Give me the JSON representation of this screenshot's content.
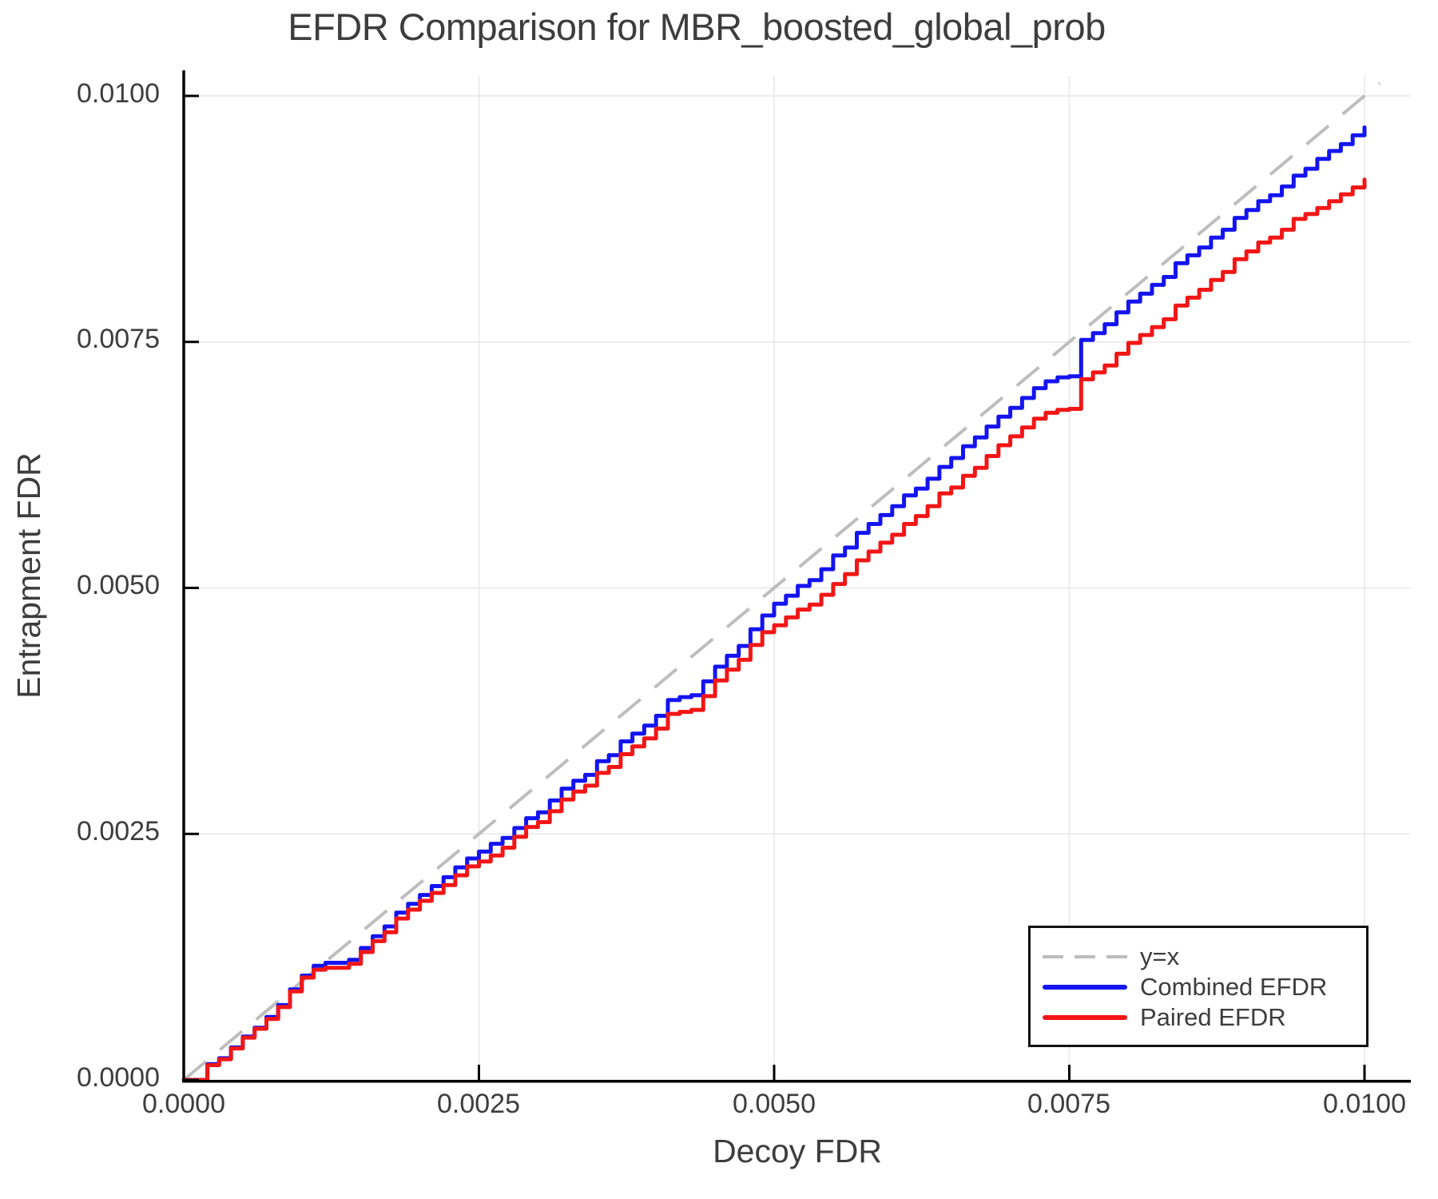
{
  "title": "EFDR Comparison for MBR_boosted_global_prob",
  "colors": {
    "combined_blue": "#1414f0",
    "paired_red": "#f21616",
    "diagonal_gray": "#bdbdbd",
    "grid_gray": "#e8e8e8",
    "spine_black": "#000000",
    "text_gray": "#3d3d3d"
  },
  "legend": {
    "entries": [
      {
        "label": "y=x",
        "style": "dashed",
        "color_key": "diagonal_gray"
      },
      {
        "label": "Combined EFDR",
        "style": "solid",
        "color_key": "combined_blue"
      },
      {
        "label": "Paired EFDR",
        "style": "solid",
        "color_key": "paired_red"
      }
    ],
    "position": "lower right"
  },
  "chart_data": {
    "type": "line",
    "title": "EFDR Comparison for MBR_boosted_global_prob",
    "xlabel": "Decoy FDR",
    "ylabel": "Entrapment FDR",
    "xlim": [
      0,
      0.0104
    ],
    "ylim": [
      0,
      0.0104
    ],
    "grid": true,
    "xticks": [
      0,
      0.0025,
      0.005,
      0.0075,
      0.01
    ],
    "yticks": [
      0,
      0.0025,
      0.005,
      0.0075,
      0.01
    ],
    "x_tick_labels": [
      "0.0000",
      "0.0025",
      "0.0050",
      "0.0075",
      "0.0100"
    ],
    "y_tick_labels": [
      "0.0000",
      "0.0025",
      "0.0050",
      "0.0075",
      "0.0100"
    ],
    "note": "Solid series sampled on a uniform x grid; x_i = i * x_step, y values given in units of 1e-4 (curves are step functions rendered step-after).",
    "x_step": 0.0001,
    "diagonal": {
      "name": "y=x",
      "x_start": 0,
      "x_end": 0.01013
    },
    "series": [
      {
        "name": "Combined EFDR",
        "style": "solid",
        "color_key": "combined_blue",
        "y_values_x1e4": [
          0,
          0,
          1.6,
          2.2,
          3.3,
          4.4,
          5.3,
          6.4,
          7.6,
          9.2,
          10.6,
          11.6,
          11.9,
          11.9,
          12.2,
          13.4,
          14.6,
          15.6,
          17.0,
          17.9,
          18.8,
          19.7,
          20.6,
          21.6,
          22.5,
          23.2,
          24.0,
          24.6,
          25.6,
          26.6,
          27.2,
          28.4,
          29.6,
          30.4,
          31.0,
          32.4,
          33.0,
          34.4,
          35.2,
          36.0,
          37.0,
          38.6,
          38.9,
          39.1,
          40.5,
          42.0,
          43.1,
          44.1,
          45.8,
          47.2,
          48.4,
          49.2,
          50.2,
          50.8,
          51.9,
          53.3,
          54.1,
          55.6,
          56.5,
          57.4,
          58.3,
          59.4,
          60.1,
          61.1,
          62.3,
          63.2,
          64.4,
          65.3,
          66.4,
          67.4,
          68.3,
          69.3,
          70.3,
          71.0,
          71.4,
          71.5,
          75.2,
          75.9,
          76.8,
          78.0,
          79.1,
          79.9,
          80.8,
          81.6,
          83.0,
          83.8,
          84.6,
          85.6,
          86.4,
          87.6,
          88.4,
          89.3,
          89.9,
          90.8,
          91.9,
          92.6,
          93.6,
          94.4,
          95.1,
          96.0,
          96.8
        ]
      },
      {
        "name": "Paired EFDR",
        "style": "solid",
        "color_key": "paired_red",
        "y_values_x1e4": [
          0,
          0,
          1.5,
          2.1,
          3.2,
          4.3,
          5.2,
          6.2,
          7.4,
          9.0,
          10.4,
          11.2,
          11.4,
          11.4,
          11.8,
          13.0,
          14.1,
          15.0,
          16.4,
          17.3,
          18.2,
          19.0,
          19.8,
          20.8,
          21.7,
          22.2,
          22.8,
          23.6,
          24.7,
          25.7,
          26.2,
          27.3,
          28.5,
          29.3,
          29.9,
          31.2,
          31.8,
          33.1,
          33.9,
          34.7,
          35.7,
          37.2,
          37.4,
          37.6,
          39.0,
          40.6,
          41.7,
          42.7,
          44.2,
          45.5,
          46.2,
          47.0,
          47.8,
          48.3,
          49.3,
          50.4,
          51.4,
          52.8,
          53.7,
          54.6,
          55.4,
          56.5,
          57.3,
          58.3,
          59.6,
          60.2,
          61.4,
          62.2,
          63.4,
          64.5,
          65.4,
          66.3,
          67.2,
          67.8,
          68.1,
          68.2,
          71.2,
          71.9,
          72.6,
          73.8,
          74.9,
          75.7,
          76.5,
          77.3,
          78.7,
          79.5,
          80.3,
          81.3,
          82.1,
          83.4,
          84.2,
          85.1,
          85.6,
          86.4,
          87.5,
          88.0,
          88.6,
          89.3,
          90.0,
          90.7,
          91.5
        ]
      }
    ]
  }
}
